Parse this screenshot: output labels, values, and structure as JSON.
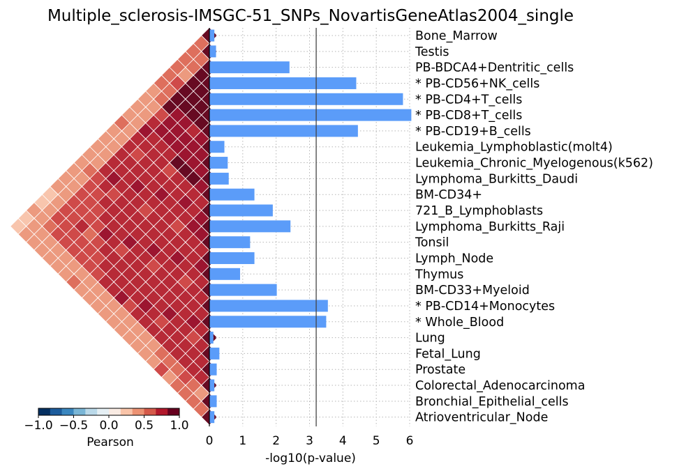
{
  "chart_data": {
    "type": "bar",
    "orientation": "horizontal",
    "title": "Multiple_sclerosis-IMSGC-51_SNPs_NovartisGeneAtlas2004_single",
    "xlabel": "-log10(p-value)",
    "xlim": [
      0,
      6
    ],
    "xticks": [
      "0",
      "1",
      "2",
      "3",
      "4",
      "5",
      "6"
    ],
    "threshold": 3.2,
    "grid": true,
    "bar_color": "#5b9cf9",
    "categories": [
      "Bone_Marrow",
      "Testis",
      "PB-BDCA4+Dentritic_cells",
      "* PB-CD56+NK_cells",
      "* PB-CD4+T_cells",
      "* PB-CD8+T_cells",
      "* PB-CD19+B_cells",
      "Leukemia_Lymphoblastic(molt4)",
      "Leukemia_Chronic_Myelogenous(k562)",
      "Lymphoma_Burkitts_Daudi",
      "BM-CD34+",
      "721_B_Lymphoblasts",
      "Lymphoma_Burkitts_Raji",
      "Tonsil",
      "Lymph_Node",
      "Thymus",
      "BM-CD33+Myeloid",
      "* PB-CD14+Monocytes",
      "* Whole_Blood",
      "Lung",
      "Fetal_Lung",
      "Prostate",
      "Colorectal_Adenocarcinoma",
      "Bronchial_Epithelial_cells",
      "Atrioventricular_Node"
    ],
    "values": [
      0.15,
      0.2,
      2.4,
      4.4,
      5.8,
      6.05,
      4.45,
      0.45,
      0.55,
      0.58,
      1.35,
      1.9,
      2.43,
      1.22,
      1.35,
      0.92,
      2.02,
      3.55,
      3.5,
      0.12,
      0.3,
      0.22,
      0.15,
      0.22,
      0.15
    ],
    "colorbar": {
      "label": "Pearson",
      "ticks": [
        "−1.0",
        "−0.5",
        "0.0",
        "0.5",
        "1.0"
      ],
      "colors": [
        "#053061",
        "#1c5c9c",
        "#3a87bf",
        "#7ab6d6",
        "#bad9e9",
        "#e5eff4",
        "#f9ebe3",
        "#f9c4a9",
        "#ec9273",
        "#d55a4a",
        "#b2182b",
        "#67001f"
      ]
    },
    "heatmap": {
      "palette": [
        "#f8c5ad",
        "#ec9a7f",
        "#de6f5d",
        "#cf4a49",
        "#b72a37",
        "#9c1530",
        "#670a22"
      ],
      "base_level": 4,
      "hot_blocks": [
        [
          2,
          7,
          6,
          1
        ],
        [
          6,
          10,
          6,
          1
        ],
        [
          11,
          13,
          5,
          1
        ],
        [
          3,
          9,
          5,
          0
        ]
      ],
      "edge_levels": [
        1,
        2,
        3
      ]
    }
  }
}
